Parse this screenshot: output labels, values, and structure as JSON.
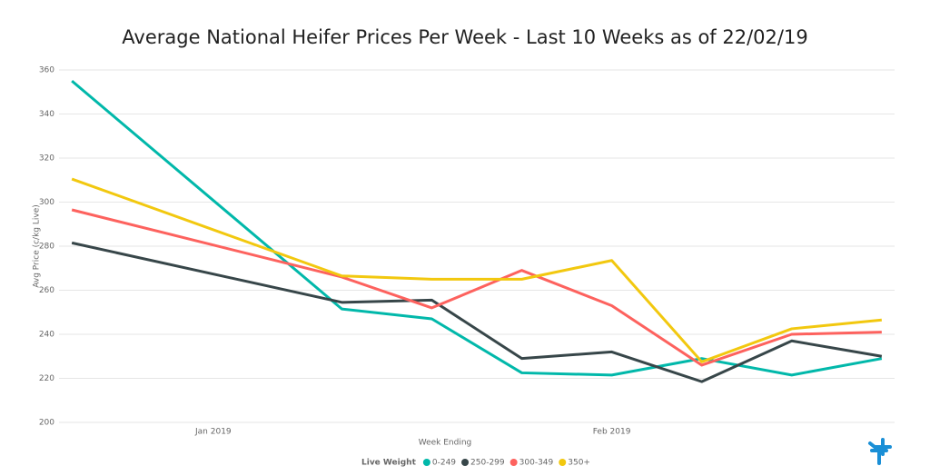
{
  "chart_data": {
    "type": "line",
    "title": "Average National Heifer Prices Per Week - Last 10 Weeks as of 22/02/19",
    "x_label": "Week Ending",
    "y_label": "Avg Price (c/kg Live)",
    "legend_title": "Live Weight",
    "legend": "bottom",
    "grid": true,
    "x": [
      "2018-12-21",
      "2019-01-11",
      "2019-01-18",
      "2019-01-25",
      "2019-02-01",
      "2019-02-08",
      "2019-02-15",
      "2019-02-22"
    ],
    "xlim": [
      "2018-12-20",
      "2019-02-23"
    ],
    "xticks": [
      {
        "value": "2019-01-01",
        "label": "Jan 2019"
      },
      {
        "value": "2019-02-01",
        "label": "Feb 2019"
      }
    ],
    "ylim": [
      200,
      360
    ],
    "yticks": [
      200,
      220,
      240,
      260,
      280,
      300,
      320,
      340,
      360
    ],
    "series": [
      {
        "name": "0-249",
        "color": "#01b8aa",
        "values": [
          355,
          251.5,
          247,
          222.5,
          221.5,
          229,
          221.5,
          229
        ]
      },
      {
        "name": "250-299",
        "color": "#374649",
        "values": [
          281.5,
          254.5,
          255.5,
          229,
          232,
          218.5,
          237,
          230
        ]
      },
      {
        "name": "300-349",
        "color": "#fd625e",
        "values": [
          296.5,
          266,
          252,
          269,
          253,
          226,
          240,
          241
        ]
      },
      {
        "name": "350+",
        "color": "#f2c80f",
        "values": [
          310.5,
          266.5,
          265,
          265,
          273.5,
          227.5,
          242.5,
          246.5
        ]
      }
    ]
  }
}
